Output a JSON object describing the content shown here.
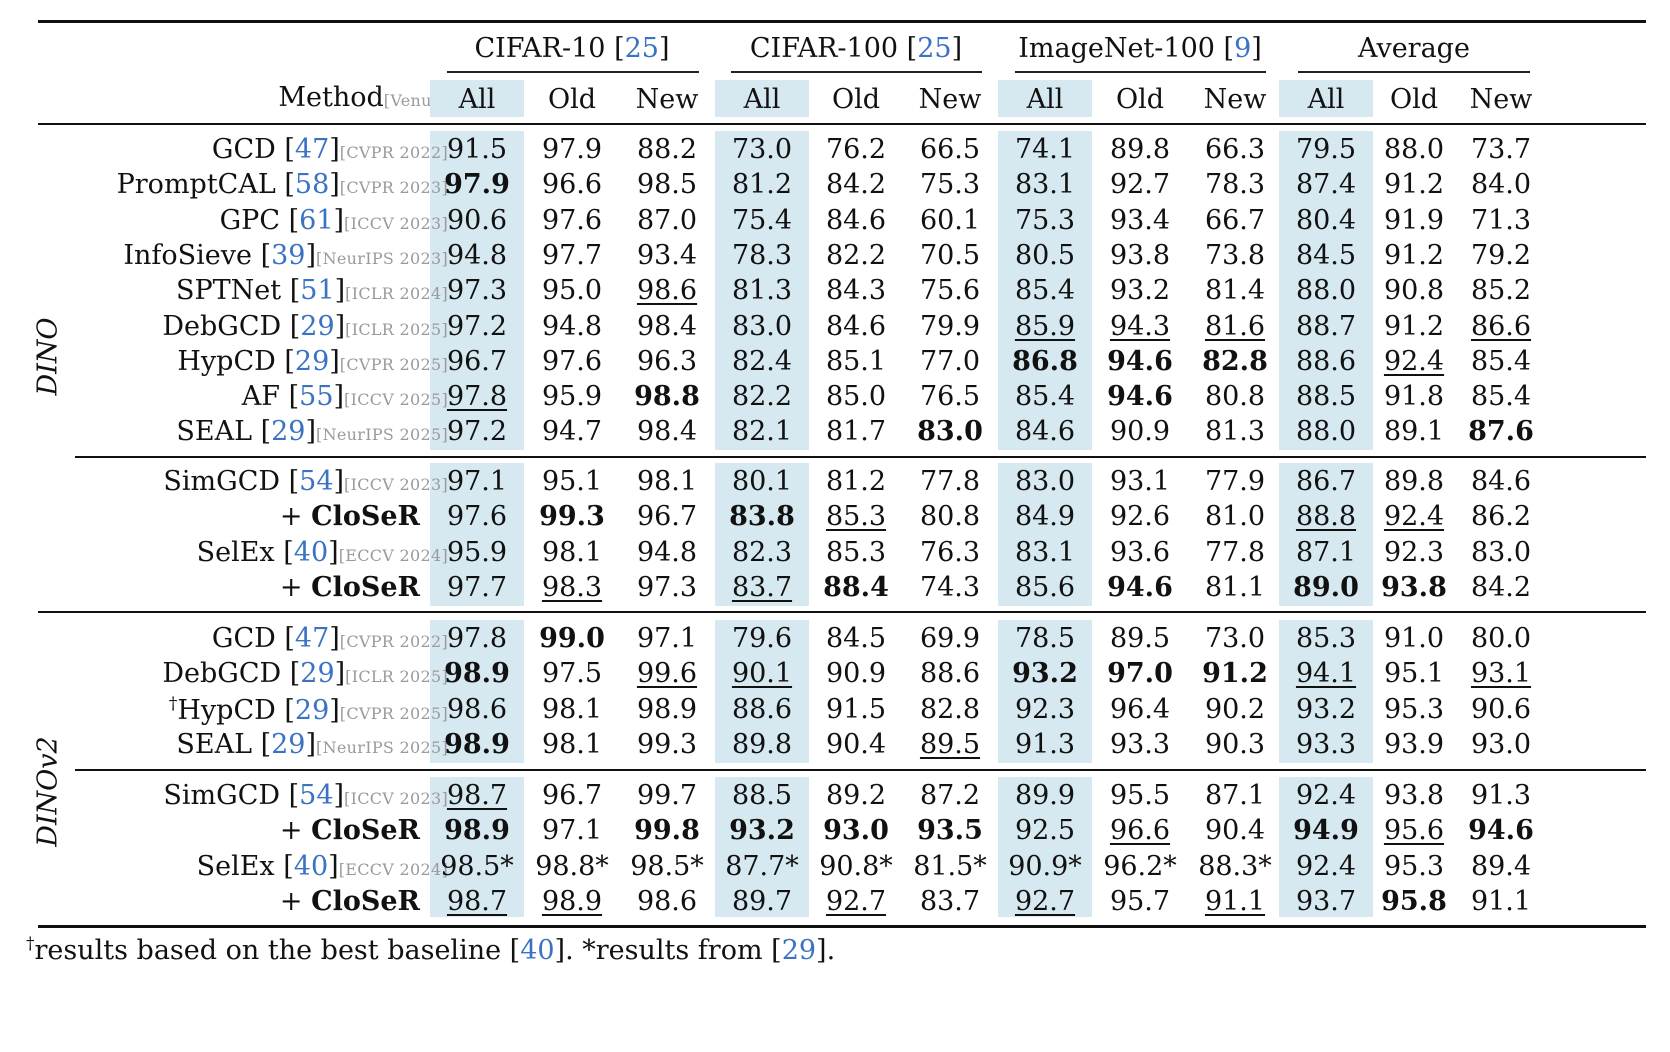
{
  "header": {
    "method_label": "Method",
    "method_venue": "[Venue]",
    "datasets": [
      {
        "name": "CIFAR-10 [",
        "cite": "25",
        "close": "]"
      },
      {
        "name": "CIFAR-100 [",
        "cite": "25",
        "close": "]"
      },
      {
        "name": "ImageNet-100 [",
        "cite": "9",
        "close": "]"
      },
      {
        "name": "Average",
        "cite": "",
        "close": ""
      }
    ],
    "subheaders": [
      "All",
      "Old",
      "New"
    ]
  },
  "blocks": [
    {
      "label": "DINO",
      "groups": [
        [
          {
            "name": "GCD",
            "cite": "47",
            "venue": "[CVPR 2022]",
            "values": [
              "91.5",
              "97.9",
              "88.2",
              "73.0",
              "76.2",
              "66.5",
              "74.1",
              "89.8",
              "66.3",
              "79.5",
              "88.0",
              "73.7"
            ]
          },
          {
            "name": "PromptCAL",
            "cite": "58",
            "venue": "[CVPR 2023]",
            "values": [
              "97.9",
              "96.6",
              "98.5",
              "81.2",
              "84.2",
              "75.3",
              "83.1",
              "92.7",
              "78.3",
              "87.4",
              "91.2",
              "84.0"
            ],
            "bold": [
              0
            ]
          },
          {
            "name": "GPC",
            "cite": "61",
            "venue": "[ICCV 2023]",
            "values": [
              "90.6",
              "97.6",
              "87.0",
              "75.4",
              "84.6",
              "60.1",
              "75.3",
              "93.4",
              "66.7",
              "80.4",
              "91.9",
              "71.3"
            ]
          },
          {
            "name": "InfoSieve",
            "cite": "39",
            "venue": "[NeurIPS 2023]",
            "values": [
              "94.8",
              "97.7",
              "93.4",
              "78.3",
              "82.2",
              "70.5",
              "80.5",
              "93.8",
              "73.8",
              "84.5",
              "91.2",
              "79.2"
            ]
          },
          {
            "name": "SPTNet",
            "cite": "51",
            "venue": "[ICLR 2024]",
            "values": [
              "97.3",
              "95.0",
              "98.6",
              "81.3",
              "84.3",
              "75.6",
              "85.4",
              "93.2",
              "81.4",
              "88.0",
              "90.8",
              "85.2"
            ],
            "underline": [
              2
            ]
          },
          {
            "name": "DebGCD",
            "cite": "29",
            "venue": "[ICLR 2025]",
            "values": [
              "97.2",
              "94.8",
              "98.4",
              "83.0",
              "84.6",
              "79.9",
              "85.9",
              "94.3",
              "81.6",
              "88.7",
              "91.2",
              "86.6"
            ],
            "underline": [
              6,
              7,
              8,
              11
            ]
          },
          {
            "name": "HypCD",
            "cite": "29",
            "venue": "[CVPR 2025]",
            "values": [
              "96.7",
              "97.6",
              "96.3",
              "82.4",
              "85.1",
              "77.0",
              "86.8",
              "94.6",
              "82.8",
              "88.6",
              "92.4",
              "85.4"
            ],
            "bold": [
              6,
              7,
              8
            ],
            "underline": [
              10
            ]
          },
          {
            "name": "AF",
            "cite": "55",
            "venue": "[ICCV 2025]",
            "values": [
              "97.8",
              "95.9",
              "98.8",
              "82.2",
              "85.0",
              "76.5",
              "85.4",
              "94.6",
              "80.8",
              "88.5",
              "91.8",
              "85.4"
            ],
            "bold": [
              2,
              7
            ],
            "underline": [
              0
            ]
          },
          {
            "name": "SEAL",
            "cite": "29",
            "venue": "[NeurIPS 2025]",
            "values": [
              "97.2",
              "94.7",
              "98.4",
              "82.1",
              "81.7",
              "83.0",
              "84.6",
              "90.9",
              "81.3",
              "88.0",
              "89.1",
              "87.6"
            ],
            "bold": [
              5,
              11
            ]
          }
        ],
        [
          {
            "name": "SimGCD",
            "cite": "54",
            "venue": "[ICCV 2023]",
            "values": [
              "97.1",
              "95.1",
              "98.1",
              "80.1",
              "81.2",
              "77.8",
              "83.0",
              "93.1",
              "77.9",
              "86.7",
              "89.8",
              "84.6"
            ]
          },
          {
            "name": "+ ",
            "bold_name": "CloSeR",
            "values": [
              "97.6",
              "99.3",
              "96.7",
              "83.8",
              "85.3",
              "80.8",
              "84.9",
              "92.6",
              "81.0",
              "88.8",
              "92.4",
              "86.2"
            ],
            "bold": [
              1,
              3
            ],
            "underline": [
              4,
              9,
              10
            ]
          },
          {
            "name": "SelEx",
            "cite": "40",
            "venue": "[ECCV 2024]",
            "values": [
              "95.9",
              "98.1",
              "94.8",
              "82.3",
              "85.3",
              "76.3",
              "83.1",
              "93.6",
              "77.8",
              "87.1",
              "92.3",
              "83.0"
            ]
          },
          {
            "name": "+ ",
            "bold_name": "CloSeR",
            "values": [
              "97.7",
              "98.3",
              "97.3",
              "83.7",
              "88.4",
              "74.3",
              "85.6",
              "94.6",
              "81.1",
              "89.0",
              "93.8",
              "84.2"
            ],
            "bold": [
              4,
              7,
              9,
              10
            ],
            "underline": [
              1,
              3
            ]
          }
        ]
      ]
    },
    {
      "label": "DINOv2",
      "groups": [
        [
          {
            "name": "GCD",
            "cite": "47",
            "venue": "[CVPR 2022]",
            "values": [
              "97.8",
              "99.0",
              "97.1",
              "79.6",
              "84.5",
              "69.9",
              "78.5",
              "89.5",
              "73.0",
              "85.3",
              "91.0",
              "80.0"
            ],
            "bold": [
              1
            ]
          },
          {
            "name": "DebGCD",
            "cite": "29",
            "venue": "[ICLR 2025]",
            "values": [
              "98.9",
              "97.5",
              "99.6",
              "90.1",
              "90.9",
              "88.6",
              "93.2",
              "97.0",
              "91.2",
              "94.1",
              "95.1",
              "93.1"
            ],
            "bold": [
              0,
              6,
              7,
              8
            ],
            "underline": [
              2,
              3,
              9,
              11
            ]
          },
          {
            "name": "HypCD",
            "dagger": "†",
            "cite": "29",
            "venue": "[CVPR 2025]",
            "values": [
              "98.6",
              "98.1",
              "98.9",
              "88.6",
              "91.5",
              "82.8",
              "92.3",
              "96.4",
              "90.2",
              "93.2",
              "95.3",
              "90.6"
            ]
          },
          {
            "name": "SEAL",
            "cite": "29",
            "venue": "[NeurIPS 2025]",
            "values": [
              "98.9",
              "98.1",
              "99.3",
              "89.8",
              "90.4",
              "89.5",
              "91.3",
              "93.3",
              "90.3",
              "93.3",
              "93.9",
              "93.0"
            ],
            "bold": [
              0
            ],
            "underline": [
              5
            ]
          }
        ],
        [
          {
            "name": "SimGCD",
            "cite": "54",
            "venue": "[ICCV 2023]",
            "values": [
              "98.7",
              "96.7",
              "99.7",
              "88.5",
              "89.2",
              "87.2",
              "89.9",
              "95.5",
              "87.1",
              "92.4",
              "93.8",
              "91.3"
            ],
            "underline": [
              0
            ]
          },
          {
            "name": "+ ",
            "bold_name": "CloSeR",
            "values": [
              "98.9",
              "97.1",
              "99.8",
              "93.2",
              "93.0",
              "93.5",
              "92.5",
              "96.6",
              "90.4",
              "94.9",
              "95.6",
              "94.6"
            ],
            "bold": [
              0,
              2,
              3,
              4,
              5,
              9,
              11
            ],
            "underline": [
              7,
              10
            ]
          },
          {
            "name": "SelEx",
            "cite": "40",
            "venue": "[ECCV 2024]",
            "values": [
              "98.5*",
              "98.8*",
              "98.5*",
              "87.7*",
              "90.8*",
              "81.5*",
              "90.9*",
              "96.2*",
              "88.3*",
              "92.4",
              "95.3",
              "89.4"
            ]
          },
          {
            "name": "+ ",
            "bold_name": "CloSeR",
            "values": [
              "98.7",
              "98.9",
              "98.6",
              "89.7",
              "92.7",
              "83.7",
              "92.7",
              "95.7",
              "91.1",
              "93.7",
              "95.8",
              "91.1"
            ],
            "bold": [
              10
            ],
            "underline": [
              0,
              1,
              4,
              6,
              8
            ]
          }
        ]
      ]
    }
  ],
  "footnote": {
    "dagger": "†",
    "text1": "results based on the best baseline [",
    "cite1": "40",
    "text2": "]. *results from [",
    "cite2": "29",
    "text3": "]."
  },
  "colors": {
    "highlight": "#d6e8f0",
    "citation": "#3b73c4",
    "venue": "#9a9a9a"
  }
}
